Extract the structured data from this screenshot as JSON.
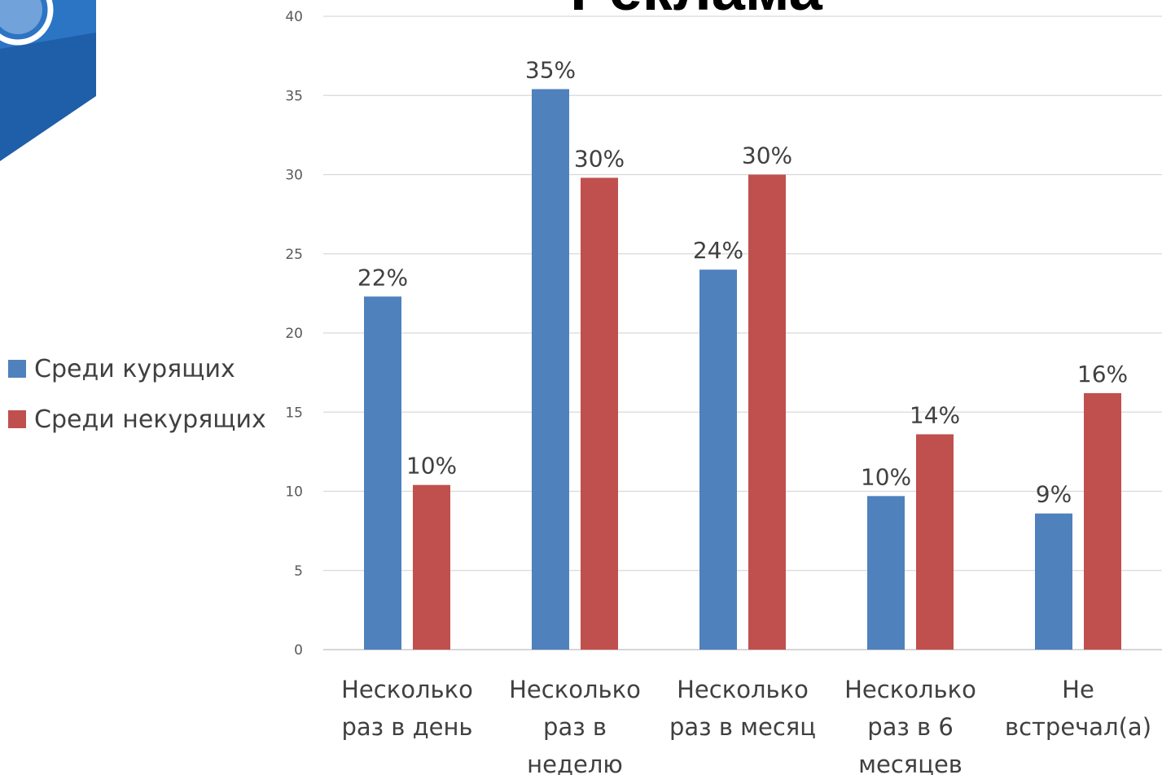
{
  "chart_data": {
    "type": "bar",
    "title": "Реклама",
    "categories": [
      [
        "Несколько",
        "раз в день"
      ],
      [
        "Несколько",
        "раз в",
        "неделю"
      ],
      [
        "Несколько",
        "раз в месяц"
      ],
      [
        "Несколько",
        "раз в 6",
        "месяцев"
      ],
      [
        "Не",
        "встречал(а)"
      ]
    ],
    "series": [
      {
        "name": "Среди курящих",
        "color": "#4f81bd",
        "values": [
          22.3,
          35.4,
          24.0,
          9.7,
          8.6
        ],
        "labels": [
          "22%",
          "35%",
          "24%",
          "10%",
          "9%"
        ]
      },
      {
        "name": "Среди некурящих",
        "color": "#c0504d",
        "values": [
          10.4,
          29.8,
          30.0,
          13.6,
          16.2
        ],
        "labels": [
          "10%",
          "30%",
          "30%",
          "14%",
          "16%"
        ]
      }
    ],
    "ylim": [
      0,
      40
    ],
    "yticks": [
      0,
      5,
      10,
      15,
      20,
      25,
      30,
      35,
      40
    ],
    "grid": true,
    "legend": "left"
  }
}
